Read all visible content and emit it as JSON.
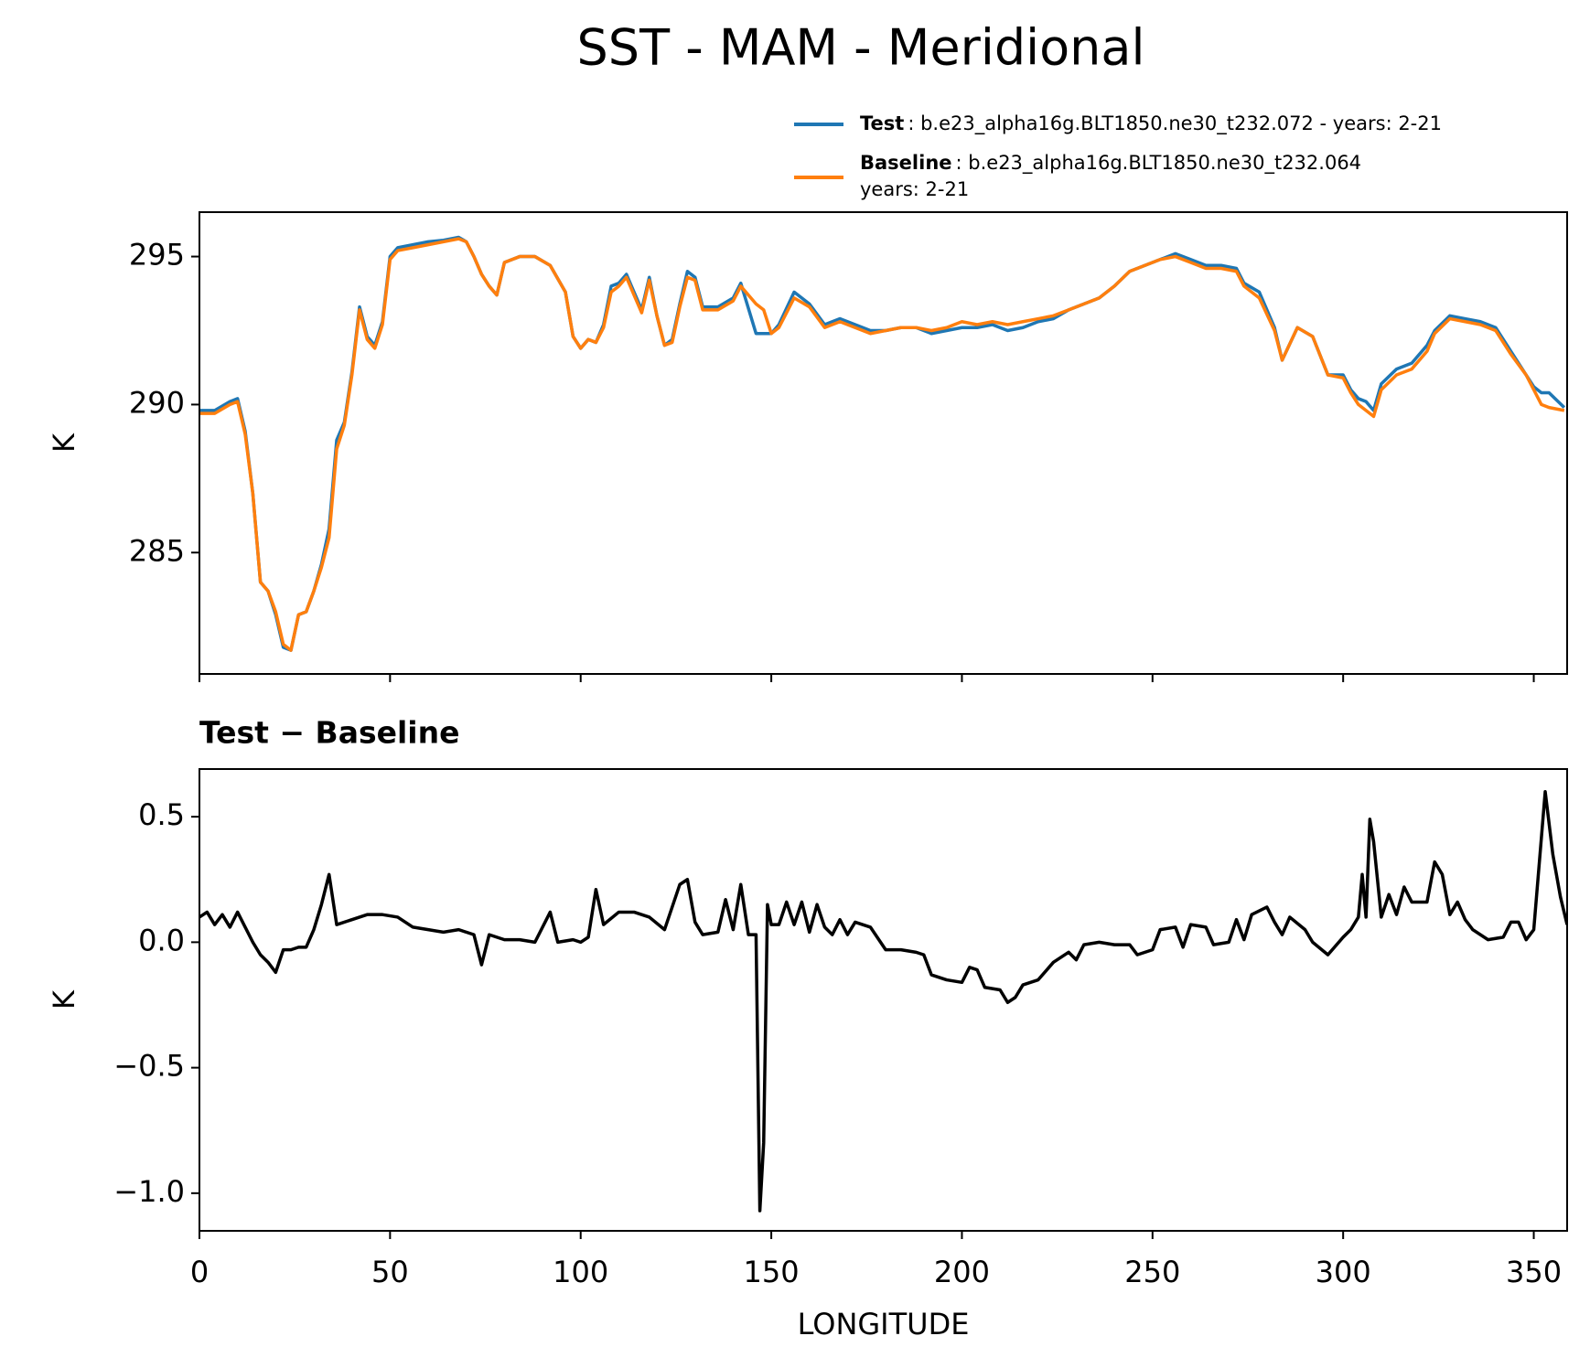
{
  "chart_data": [
    {
      "type": "line",
      "suptitle": "SST - MAM - Meridional",
      "ylabel": "K",
      "x": [
        0,
        4,
        8,
        10,
        12,
        14,
        16,
        18,
        20,
        22,
        24,
        26,
        28,
        30,
        32,
        34,
        36,
        38,
        40,
        42,
        44,
        46,
        48,
        50,
        52,
        56,
        60,
        64,
        68,
        70,
        72,
        74,
        76,
        78,
        80,
        84,
        88,
        92,
        96,
        98,
        100,
        102,
        104,
        106,
        108,
        110,
        112,
        114,
        116,
        118,
        120,
        122,
        124,
        126,
        128,
        130,
        132,
        136,
        140,
        142,
        146,
        148,
        150,
        152,
        156,
        160,
        164,
        168,
        172,
        176,
        180,
        184,
        188,
        192,
        196,
        200,
        204,
        208,
        212,
        216,
        220,
        224,
        228,
        232,
        236,
        240,
        244,
        248,
        252,
        256,
        260,
        264,
        268,
        272,
        274,
        278,
        282,
        284,
        288,
        292,
        296,
        300,
        302,
        304,
        306,
        308,
        310,
        314,
        318,
        322,
        324,
        328,
        332,
        336,
        340,
        344,
        348,
        350,
        352,
        354,
        358
      ],
      "series": [
        {
          "name": "Test",
          "label": ": b.e23_alpha16g.BLT1850.ne30_t232.072 - years: 2-21",
          "color": "#1f77b4",
          "values": [
            289.8,
            289.8,
            290.1,
            290.2,
            289.1,
            287.0,
            284.0,
            283.7,
            282.9,
            281.8,
            281.7,
            282.9,
            283.0,
            283.7,
            284.6,
            285.8,
            288.8,
            289.4,
            291.1,
            293.3,
            292.3,
            292.0,
            292.8,
            295.0,
            295.3,
            295.4,
            295.5,
            295.55,
            295.65,
            295.5,
            295.0,
            294.4,
            294.0,
            293.7,
            294.8,
            295.0,
            295.0,
            294.7,
            293.8,
            292.3,
            291.9,
            292.2,
            292.1,
            292.7,
            294.0,
            294.1,
            294.4,
            293.8,
            293.2,
            294.3,
            293.0,
            292.0,
            292.2,
            293.4,
            294.5,
            294.3,
            293.3,
            293.3,
            293.6,
            294.1,
            292.4,
            292.4,
            292.4,
            292.7,
            293.8,
            293.4,
            292.7,
            292.9,
            292.7,
            292.5,
            292.5,
            292.6,
            292.6,
            292.4,
            292.5,
            292.6,
            292.6,
            292.7,
            292.5,
            292.6,
            292.8,
            292.9,
            293.2,
            293.4,
            293.6,
            294.0,
            294.5,
            294.7,
            294.9,
            295.1,
            294.9,
            294.7,
            294.7,
            294.6,
            294.1,
            293.8,
            292.6,
            291.5,
            292.6,
            292.3,
            291.0,
            291.0,
            290.5,
            290.2,
            290.1,
            289.8,
            290.7,
            291.2,
            291.4,
            292.0,
            292.5,
            293.0,
            292.9,
            292.8,
            292.6,
            291.8,
            291.0,
            290.6,
            290.4,
            290.4,
            289.9
          ]
        },
        {
          "name": "Baseline",
          "label": [
            ": b.e23_alpha16g.BLT1850.ne30_t232.064",
            "years: 2-21"
          ],
          "color": "#ff7f0e",
          "values": [
            289.7,
            289.7,
            290.0,
            290.1,
            289.0,
            287.0,
            284.0,
            283.7,
            283.0,
            281.9,
            281.7,
            282.9,
            283.0,
            283.7,
            284.5,
            285.5,
            288.5,
            289.3,
            291.0,
            293.2,
            292.2,
            291.9,
            292.7,
            294.9,
            295.2,
            295.3,
            295.4,
            295.5,
            295.6,
            295.5,
            295.0,
            294.4,
            294.0,
            293.7,
            294.8,
            295.0,
            295.0,
            294.7,
            293.8,
            292.3,
            291.9,
            292.2,
            292.1,
            292.6,
            293.8,
            294.0,
            294.3,
            293.7,
            293.1,
            294.2,
            293.0,
            292.0,
            292.1,
            293.3,
            294.3,
            294.2,
            293.2,
            293.2,
            293.5,
            294.0,
            293.4,
            293.2,
            292.4,
            292.6,
            293.6,
            293.3,
            292.6,
            292.8,
            292.6,
            292.4,
            292.5,
            292.6,
            292.6,
            292.5,
            292.6,
            292.8,
            292.7,
            292.8,
            292.7,
            292.8,
            292.9,
            293.0,
            293.2,
            293.4,
            293.6,
            294.0,
            294.5,
            294.7,
            294.9,
            295.0,
            294.8,
            294.6,
            294.6,
            294.5,
            294.0,
            293.6,
            292.5,
            291.5,
            292.6,
            292.3,
            291.0,
            290.9,
            290.4,
            290.0,
            289.8,
            289.6,
            290.5,
            291.0,
            291.2,
            291.8,
            292.4,
            292.9,
            292.8,
            292.7,
            292.5,
            291.7,
            291.0,
            290.5,
            290.0,
            289.9,
            289.8
          ]
        }
      ],
      "xlim": [
        0,
        358.75
      ],
      "xticks": [
        0,
        50,
        100,
        150,
        200,
        250,
        300,
        350
      ],
      "ylim": [
        280.9,
        296.5
      ],
      "yticks": [
        285,
        290,
        295
      ]
    },
    {
      "type": "line",
      "title": "Test − Baseline",
      "ylabel": "K",
      "xlabel": "LONGITUDE",
      "color": "#000000",
      "x": [
        0,
        2,
        4,
        6,
        8,
        10,
        12,
        14,
        16,
        18,
        20,
        22,
        24,
        26,
        28,
        30,
        32,
        34,
        36,
        40,
        44,
        48,
        52,
        56,
        60,
        64,
        68,
        72,
        74,
        76,
        80,
        84,
        88,
        92,
        94,
        98,
        100,
        102,
        104,
        106,
        110,
        114,
        118,
        122,
        126,
        128,
        130,
        132,
        136,
        138,
        140,
        142,
        144,
        146,
        147,
        148,
        149,
        150,
        152,
        154,
        156,
        158,
        160,
        162,
        164,
        166,
        168,
        170,
        172,
        176,
        180,
        184,
        188,
        190,
        192,
        196,
        200,
        202,
        204,
        206,
        210,
        212,
        214,
        216,
        220,
        224,
        228,
        230,
        232,
        236,
        240,
        244,
        246,
        250,
        252,
        256,
        258,
        260,
        264,
        266,
        270,
        272,
        274,
        276,
        280,
        282,
        284,
        286,
        290,
        292,
        296,
        300,
        302,
        304,
        305,
        306,
        307,
        308,
        310,
        312,
        314,
        316,
        318,
        322,
        324,
        326,
        328,
        330,
        332,
        334,
        338,
        342,
        344,
        346,
        348,
        350,
        353,
        355,
        357,
        358.75
      ],
      "values": [
        0.1,
        0.12,
        0.07,
        0.11,
        0.06,
        0.12,
        0.06,
        0.0,
        -0.05,
        -0.08,
        -0.12,
        -0.03,
        -0.03,
        -0.02,
        -0.02,
        0.05,
        0.15,
        0.27,
        0.07,
        0.09,
        0.11,
        0.11,
        0.1,
        0.06,
        0.05,
        0.04,
        0.05,
        0.03,
        -0.09,
        0.03,
        0.01,
        0.01,
        0.0,
        0.12,
        0.0,
        0.01,
        0.0,
        0.02,
        0.21,
        0.07,
        0.12,
        0.12,
        0.1,
        0.05,
        0.23,
        0.25,
        0.08,
        0.03,
        0.04,
        0.17,
        0.05,
        0.23,
        0.03,
        0.03,
        -1.07,
        -0.8,
        0.15,
        0.07,
        0.07,
        0.16,
        0.07,
        0.16,
        0.04,
        0.15,
        0.06,
        0.03,
        0.09,
        0.03,
        0.08,
        0.06,
        -0.03,
        -0.03,
        -0.04,
        -0.05,
        -0.13,
        -0.15,
        -0.16,
        -0.1,
        -0.11,
        -0.18,
        -0.19,
        -0.24,
        -0.22,
        -0.17,
        -0.15,
        -0.08,
        -0.04,
        -0.07,
        -0.01,
        0.0,
        -0.01,
        -0.01,
        -0.05,
        -0.03,
        0.05,
        0.06,
        -0.02,
        0.07,
        0.06,
        -0.01,
        0.0,
        0.09,
        0.01,
        0.11,
        0.14,
        0.08,
        0.03,
        0.1,
        0.05,
        0.0,
        -0.05,
        0.02,
        0.05,
        0.1,
        0.27,
        0.1,
        0.49,
        0.4,
        0.1,
        0.19,
        0.11,
        0.22,
        0.16,
        0.16,
        0.32,
        0.27,
        0.11,
        0.16,
        0.09,
        0.05,
        0.01,
        0.02,
        0.08,
        0.08,
        0.01,
        0.05,
        0.6,
        0.35,
        0.18,
        0.07
      ],
      "xlim": [
        0,
        358.75
      ],
      "xticks": [
        0,
        50,
        100,
        150,
        200,
        250,
        300,
        350
      ],
      "ylim": [
        -1.15,
        0.69
      ],
      "yticks": [
        {
          "value": 0.5,
          "label": "0.5"
        },
        {
          "value": 0.0,
          "label": "0.0"
        },
        {
          "value": -0.5,
          "label": "−0.5"
        },
        {
          "value": -1.0,
          "label": "−1.0"
        }
      ]
    }
  ]
}
